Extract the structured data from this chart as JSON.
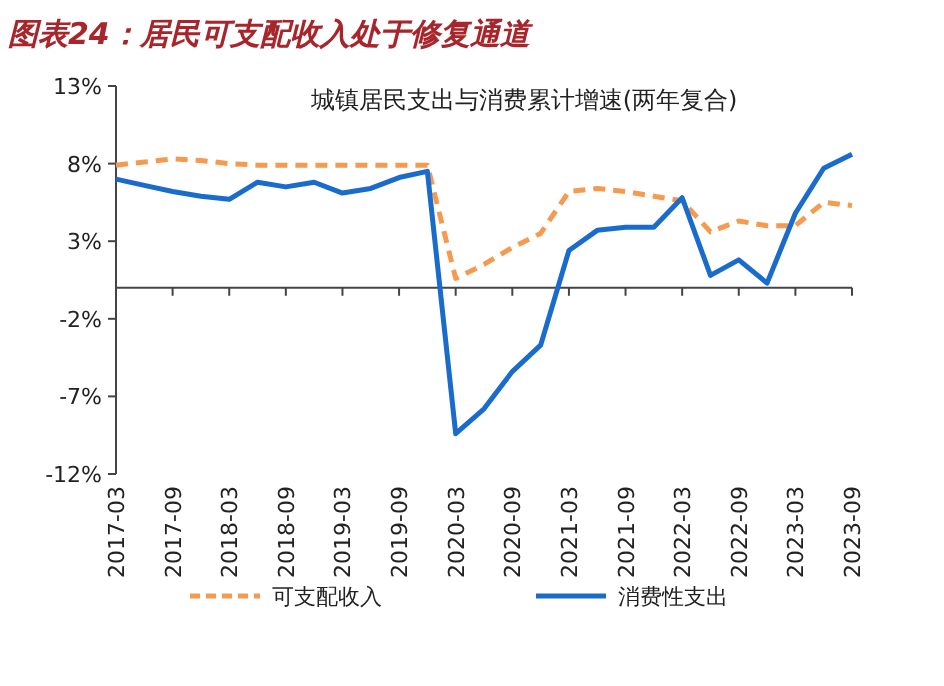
{
  "chart_data": {
    "type": "line",
    "title": "图表24：居民可支配收入处于修复通道",
    "subtitle": "城镇居民支出与消费累计增速(两年复合)",
    "categories": [
      "2017-03",
      null,
      "2017-09",
      null,
      "2018-03",
      null,
      "2018-09",
      null,
      "2019-03",
      null,
      "2019-09",
      null,
      "2020-03",
      null,
      "2020-09",
      null,
      "2021-03",
      null,
      "2021-09",
      null,
      "2022-03",
      null,
      "2022-09",
      null,
      "2023-03",
      null,
      "2023-09"
    ],
    "series": [
      {
        "name": "可支配收入",
        "color": "#f59a4f",
        "line_style": "dashed",
        "values": [
          7.9,
          8.1,
          8.3,
          8.2,
          8.0,
          7.9,
          7.9,
          7.9,
          7.9,
          7.9,
          7.9,
          7.9,
          0.6,
          1.5,
          2.6,
          3.5,
          6.2,
          6.4,
          6.2,
          5.9,
          5.6,
          3.6,
          4.3,
          4.0,
          4.0,
          5.5,
          5.3
        ]
      },
      {
        "name": "消费性支出",
        "color": "#1a6ccc",
        "line_style": "solid",
        "values": [
          7.0,
          6.6,
          6.2,
          5.9,
          5.7,
          6.8,
          6.5,
          6.8,
          6.1,
          6.4,
          7.1,
          7.5,
          -9.4,
          -7.8,
          -5.4,
          -3.7,
          2.4,
          3.7,
          3.9,
          3.9,
          5.8,
          0.8,
          1.8,
          0.3,
          4.8,
          7.7,
          8.6
        ]
      }
    ],
    "ylim": [
      -12,
      13
    ],
    "yticks": [
      {
        "value": -12,
        "label": "-12%"
      },
      {
        "value": -7,
        "label": "-7%"
      },
      {
        "value": -2,
        "label": "-2%"
      },
      {
        "value": 3,
        "label": "3%"
      },
      {
        "value": 8,
        "label": "8%"
      },
      {
        "value": 13,
        "label": "13%"
      }
    ],
    "legend": "bottom",
    "marker": "none",
    "grid": false
  }
}
